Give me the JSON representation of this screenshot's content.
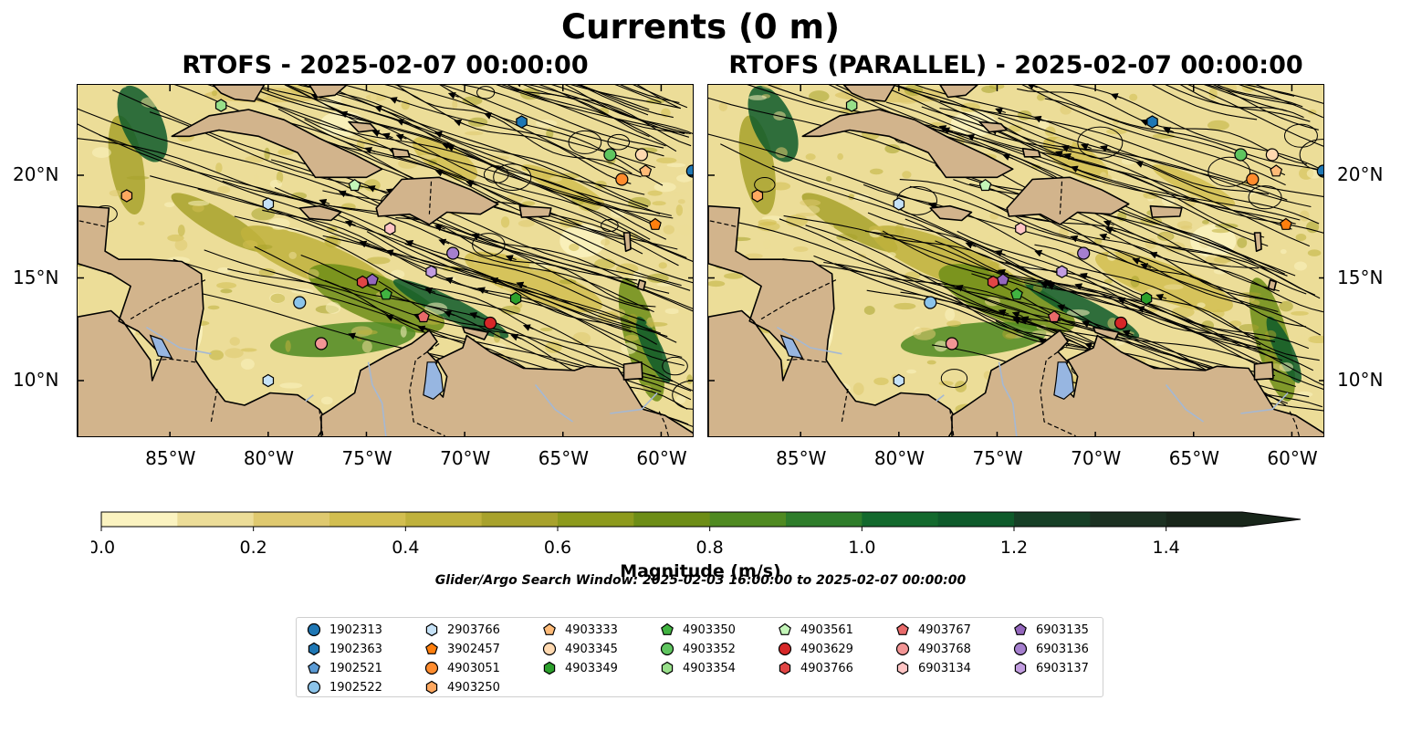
{
  "figure": {
    "title": "Currents (0 m)",
    "panels": [
      {
        "title": "RTOFS - 2025-02-07 00:00:00"
      },
      {
        "title": "RTOFS (PARALLEL) - 2025-02-07 00:00:00"
      }
    ],
    "lon_ticks": [
      "85°W",
      "80°W",
      "75°W",
      "70°W",
      "65°W",
      "60°W"
    ],
    "lat_ticks": [
      "20°N",
      "15°N",
      "10°N"
    ],
    "lon_values": [
      -85,
      -80,
      -75,
      -70,
      -65,
      -60
    ],
    "lat_values": [
      20,
      15,
      10
    ],
    "extent": {
      "lon": [
        -89.7,
        -58.3
      ],
      "lat": [
        7.2,
        24.4
      ]
    }
  },
  "colorbar": {
    "label": "Magnitude (m/s)",
    "ticks": [
      "0.0",
      "0.2",
      "0.4",
      "0.6",
      "0.8",
      "1.0",
      "1.2",
      "1.4"
    ],
    "range": [
      0,
      1.5
    ],
    "extend": "max",
    "colors": [
      "#fbf3c0",
      "#ecdd98",
      "#dfc96f",
      "#d2be50",
      "#bfb13c",
      "#a8a22c",
      "#8d9a1c",
      "#6d8d16",
      "#4f8a21",
      "#2e7d2a",
      "#13692d",
      "#0e5a2a",
      "#163f26",
      "#1c3122",
      "#18261a"
    ]
  },
  "search_window": "Glider/Argo Search Window: 2025-02-03 16:00:00 to 2025-02-07 00:00:00",
  "colors": {
    "land": "#d2b48c",
    "water_body": "#97b6e1",
    "river": "#a4b8d4"
  },
  "legend": {
    "columns": [
      [
        {
          "id": "1902313",
          "color": "#1f77b4",
          "marker": "circle"
        },
        {
          "id": "1902363",
          "color": "#1f77b4",
          "marker": "hexagon"
        },
        {
          "id": "1902521",
          "color": "#5b9bd5",
          "marker": "pentagon"
        },
        {
          "id": "1902522",
          "color": "#8cc4ea",
          "marker": "circle"
        }
      ],
      [
        {
          "id": "2903766",
          "color": "#c6e2f7",
          "marker": "hexagon"
        },
        {
          "id": "3902457",
          "color": "#ff7f0e",
          "marker": "pentagon"
        },
        {
          "id": "4903051",
          "color": "#ff8c2e",
          "marker": "circle"
        },
        {
          "id": "4903250",
          "color": "#ffa860",
          "marker": "hexagon"
        }
      ],
      [
        {
          "id": "4903333",
          "color": "#ffbb78",
          "marker": "pentagon"
        },
        {
          "id": "4903345",
          "color": "#ffd9b0",
          "marker": "circle"
        },
        {
          "id": "4903349",
          "color": "#2ca02c",
          "marker": "hexagon"
        }
      ],
      [
        {
          "id": "4903350",
          "color": "#41b341",
          "marker": "pentagon"
        },
        {
          "id": "4903352",
          "color": "#5fc55f",
          "marker": "circle"
        },
        {
          "id": "4903354",
          "color": "#98df8a",
          "marker": "hexagon"
        }
      ],
      [
        {
          "id": "4903561",
          "color": "#c3f5b8",
          "marker": "pentagon"
        },
        {
          "id": "4903629",
          "color": "#d62728",
          "marker": "circle"
        },
        {
          "id": "4903766",
          "color": "#e04545",
          "marker": "hexagon"
        }
      ],
      [
        {
          "id": "4903767",
          "color": "#e86a6a",
          "marker": "pentagon"
        },
        {
          "id": "4903768",
          "color": "#f29595",
          "marker": "circle"
        },
        {
          "id": "6903134",
          "color": "#ffc5c5",
          "marker": "hexagon"
        }
      ],
      [
        {
          "id": "6903135",
          "color": "#9467bd",
          "marker": "pentagon"
        },
        {
          "id": "6903136",
          "color": "#a57fce",
          "marker": "circle"
        },
        {
          "id": "6903137",
          "color": "#c29de0",
          "marker": "hexagon"
        }
      ]
    ]
  },
  "floats": {
    "left": [
      {
        "id": "1902313",
        "lon": -58.4,
        "lat": 20.2
      },
      {
        "id": "1902363",
        "lon": -67.1,
        "lat": 22.6
      },
      {
        "id": "1902522",
        "lon": -78.4,
        "lat": 13.8
      },
      {
        "id": "2903766",
        "lon": -80.0,
        "lat": 18.6
      },
      {
        "id": "2903766",
        "lon": -80.0,
        "lat": 10.0
      },
      {
        "id": "3902457",
        "lon": -60.3,
        "lat": 17.6
      },
      {
        "id": "4903051",
        "lon": -62.0,
        "lat": 19.8
      },
      {
        "id": "4903250",
        "lon": -87.2,
        "lat": 19.0
      },
      {
        "id": "4903333",
        "lon": -60.8,
        "lat": 20.2
      },
      {
        "id": "4903345",
        "lon": -61.0,
        "lat": 21.0
      },
      {
        "id": "4903349",
        "lon": -67.4,
        "lat": 14.0
      },
      {
        "id": "4903350",
        "lon": -74.0,
        "lat": 14.2
      },
      {
        "id": "4903352",
        "lon": -62.6,
        "lat": 21.0
      },
      {
        "id": "4903354",
        "lon": -82.4,
        "lat": 23.4
      },
      {
        "id": "4903561",
        "lon": -75.6,
        "lat": 19.5
      },
      {
        "id": "4903629",
        "lon": -68.7,
        "lat": 12.8
      },
      {
        "id": "4903766",
        "lon": -75.2,
        "lat": 14.8
      },
      {
        "id": "4903767",
        "lon": -72.1,
        "lat": 13.1
      },
      {
        "id": "4903768",
        "lon": -77.3,
        "lat": 11.8
      },
      {
        "id": "6903134",
        "lon": -73.8,
        "lat": 17.4
      },
      {
        "id": "6903135",
        "lon": -74.7,
        "lat": 14.9
      },
      {
        "id": "6903136",
        "lon": -70.6,
        "lat": 16.2
      },
      {
        "id": "6903137",
        "lon": -71.7,
        "lat": 15.3
      }
    ],
    "right": [
      {
        "id": "1902313",
        "lon": -58.4,
        "lat": 20.2
      },
      {
        "id": "1902363",
        "lon": -67.1,
        "lat": 22.6
      },
      {
        "id": "1902522",
        "lon": -78.4,
        "lat": 13.8
      },
      {
        "id": "2903766",
        "lon": -80.0,
        "lat": 18.6
      },
      {
        "id": "2903766",
        "lon": -80.0,
        "lat": 10.0
      },
      {
        "id": "3902457",
        "lon": -60.3,
        "lat": 17.6
      },
      {
        "id": "4903051",
        "lon": -62.0,
        "lat": 19.8
      },
      {
        "id": "4903250",
        "lon": -87.2,
        "lat": 19.0
      },
      {
        "id": "4903333",
        "lon": -60.8,
        "lat": 20.2
      },
      {
        "id": "4903345",
        "lon": -61.0,
        "lat": 21.0
      },
      {
        "id": "4903349",
        "lon": -67.4,
        "lat": 14.0
      },
      {
        "id": "4903350",
        "lon": -74.0,
        "lat": 14.2
      },
      {
        "id": "4903352",
        "lon": -62.6,
        "lat": 21.0
      },
      {
        "id": "4903354",
        "lon": -82.4,
        "lat": 23.4
      },
      {
        "id": "4903561",
        "lon": -75.6,
        "lat": 19.5
      },
      {
        "id": "4903629",
        "lon": -68.7,
        "lat": 12.8
      },
      {
        "id": "4903766",
        "lon": -75.2,
        "lat": 14.8
      },
      {
        "id": "4903767",
        "lon": -72.1,
        "lat": 13.1
      },
      {
        "id": "4903768",
        "lon": -77.3,
        "lat": 11.8
      },
      {
        "id": "6903134",
        "lon": -73.8,
        "lat": 17.4
      },
      {
        "id": "6903135",
        "lon": -74.7,
        "lat": 14.9
      },
      {
        "id": "6903136",
        "lon": -70.6,
        "lat": 16.2
      },
      {
        "id": "6903137",
        "lon": -71.7,
        "lat": 15.3
      }
    ]
  }
}
